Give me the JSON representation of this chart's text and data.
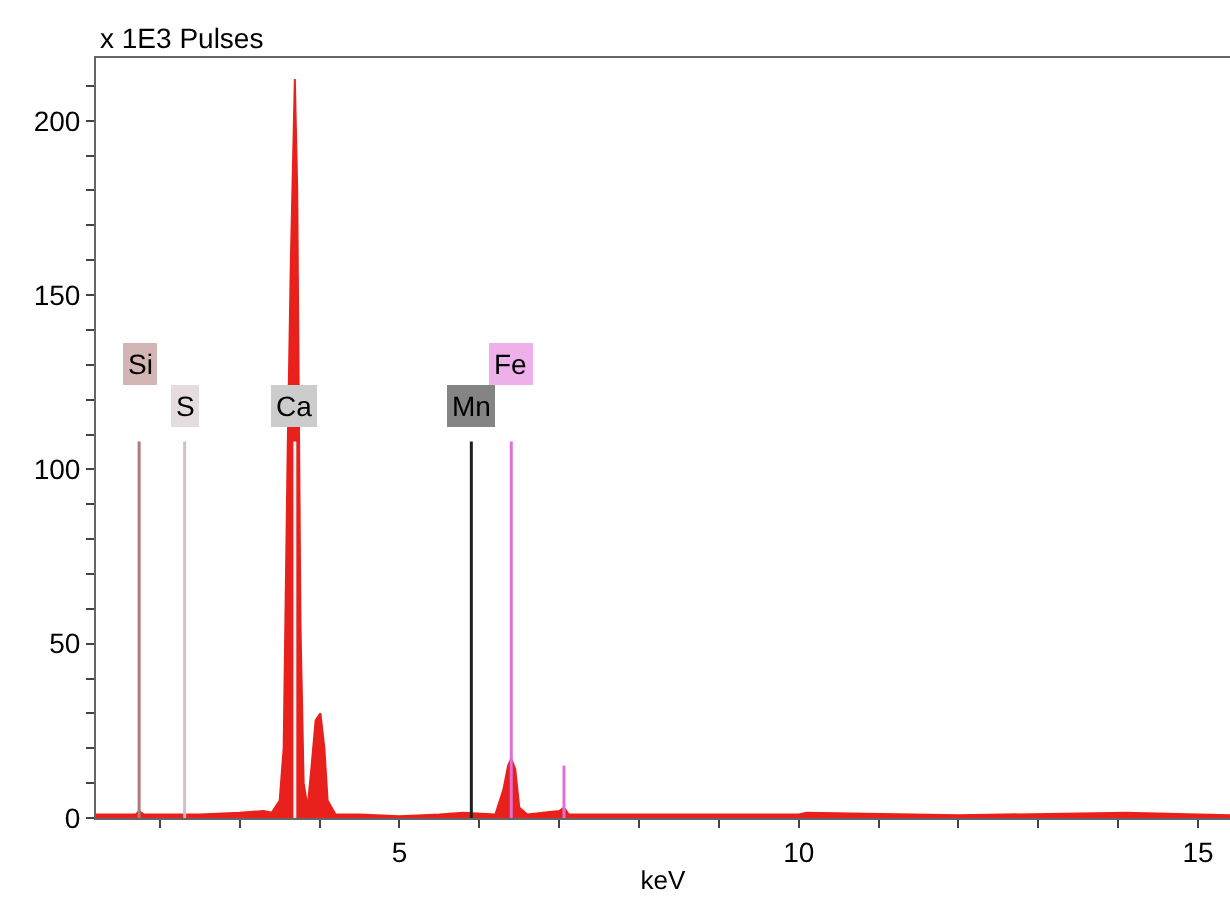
{
  "chart_data": {
    "type": "area",
    "ylabel": "x 1E3 Pulses",
    "xlabel": "keV",
    "xlim": [
      1.2,
      15.4
    ],
    "ylim": [
      0,
      218
    ],
    "xticks": [
      {
        "value": 2,
        "label": null
      },
      {
        "value": 3,
        "label": null
      },
      {
        "value": 4,
        "label": null
      },
      5,
      {
        "value": 6,
        "label": null
      },
      {
        "value": 7,
        "label": null
      },
      {
        "value": 8,
        "label": null
      },
      {
        "value": 9,
        "label": null
      },
      10,
      {
        "value": 11,
        "label": null
      },
      {
        "value": 12,
        "label": null
      },
      {
        "value": 13,
        "label": null
      },
      {
        "value": 14,
        "label": null
      },
      15
    ],
    "yticks": [
      0,
      {
        "value": 10,
        "label": null
      },
      {
        "value": 20,
        "label": null
      },
      {
        "value": 30,
        "label": null
      },
      {
        "value": 40,
        "label": null
      },
      50,
      {
        "value": 60,
        "label": null
      },
      {
        "value": 70,
        "label": null
      },
      {
        "value": 80,
        "label": null
      },
      {
        "value": 90,
        "label": null
      },
      100,
      {
        "value": 110,
        "label": null
      },
      {
        "value": 120,
        "label": null
      },
      {
        "value": 130,
        "label": null
      },
      {
        "value": 140,
        "label": null
      },
      150,
      {
        "value": 160,
        "label": null
      },
      {
        "value": 170,
        "label": null
      },
      {
        "value": 180,
        "label": null
      },
      {
        "value": 190,
        "label": null
      },
      200,
      {
        "value": 210,
        "label": null
      }
    ],
    "series": [
      {
        "color": "#e8211c",
        "x": [
          1.2,
          1.7,
          1.74,
          1.8,
          2.5,
          3.0,
          3.3,
          3.4,
          3.5,
          3.55,
          3.6,
          3.64,
          3.69,
          3.72,
          3.76,
          3.8,
          3.85,
          3.9,
          3.95,
          4.01,
          4.06,
          4.1,
          4.2,
          4.5,
          5.0,
          5.5,
          5.8,
          6.2,
          6.3,
          6.36,
          6.4,
          6.45,
          6.5,
          6.6,
          7.0,
          7.06,
          7.12,
          8.0,
          10.0,
          10.1,
          12.0,
          14.1,
          15.4
        ],
        "values": [
          1,
          1,
          2,
          1,
          1,
          1.5,
          2,
          1.5,
          5,
          20,
          105,
          160,
          212,
          180,
          56,
          10,
          3,
          15,
          28,
          30,
          20,
          5,
          1,
          1,
          0.5,
          1,
          1.5,
          1,
          8,
          15,
          17,
          14,
          3,
          1,
          2,
          3,
          1,
          1,
          1,
          1.5,
          0.8,
          1.5,
          0.8
        ]
      },
      {
        "type": "line",
        "name": "Si",
        "color": "#b07a7a",
        "x": [
          1.74,
          1.74
        ],
        "values": [
          0,
          108
        ]
      },
      {
        "type": "line",
        "name": "S",
        "color": "#d0c0c8",
        "x": [
          2.31,
          2.31
        ],
        "values": [
          0,
          108
        ]
      },
      {
        "type": "line",
        "name": "Ca",
        "color": "#f4f0f0",
        "x": [
          3.69,
          3.69
        ],
        "values": [
          0,
          108
        ]
      },
      {
        "type": "line",
        "name": "Mn",
        "color": "#202020",
        "x": [
          5.9,
          5.9
        ],
        "values": [
          0,
          108
        ]
      },
      {
        "type": "line",
        "name": "Fe",
        "color": "#e070d8",
        "x": [
          6.4,
          6.4
        ],
        "values": [
          0,
          108
        ]
      },
      {
        "type": "line",
        "color": "#e070d8",
        "x": [
          7.06,
          7.06
        ],
        "values": [
          0,
          15
        ]
      }
    ]
  }
}
